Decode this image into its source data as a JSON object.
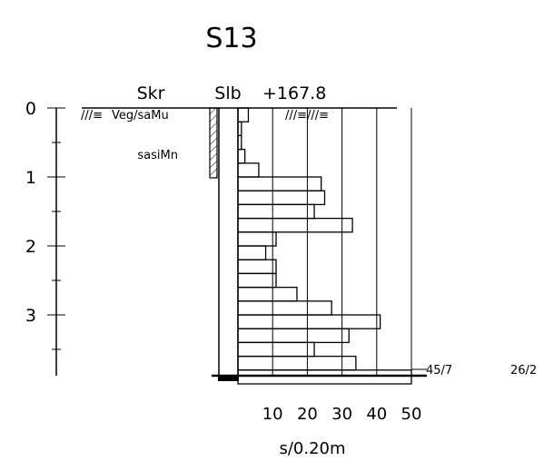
{
  "title": "S13",
  "columns": {
    "soil_label": "Skr",
    "method_label": "Slb",
    "elevation": "+167.8"
  },
  "soil_layers": [
    {
      "symbol": "///≡",
      "label": "Veg/saMu",
      "from_m": 0,
      "to_m": 0.3
    },
    {
      "symbol": "",
      "label": "sasiMn",
      "from_m": 0.3,
      "to_m": 1.0
    }
  ],
  "surface_symbol": "///≡///≡",
  "depth_axis": {
    "labels": [
      "0",
      "1",
      "2",
      "3"
    ],
    "max_m": 3.9,
    "tick_step_m": 0.5
  },
  "x_axis": {
    "ticks": [
      "10",
      "20",
      "30",
      "40",
      "50"
    ],
    "unit": "s/0.20m",
    "range": [
      0,
      50
    ]
  },
  "end_notes": {
    "near": "45/7",
    "far": "26/2"
  },
  "chart_data": {
    "type": "bar",
    "orientation": "horizontal",
    "title": "S13",
    "xlabel": "s/0.20m",
    "ylabel": "",
    "xlim": [
      0,
      50
    ],
    "ylim": [
      0,
      3.9
    ],
    "interval_m": 0.2,
    "depth_top_m": [
      0.0,
      0.2,
      0.4,
      0.6,
      0.8,
      1.0,
      1.2,
      1.4,
      1.6,
      1.8,
      2.0,
      2.2,
      2.4,
      2.6,
      2.8,
      3.0,
      3.2,
      3.4,
      3.6,
      3.8
    ],
    "values": [
      3,
      1,
      1,
      2,
      6,
      24,
      25,
      22,
      33,
      11,
      8,
      11,
      11,
      17,
      27,
      41,
      32,
      22,
      34,
      50
    ]
  }
}
